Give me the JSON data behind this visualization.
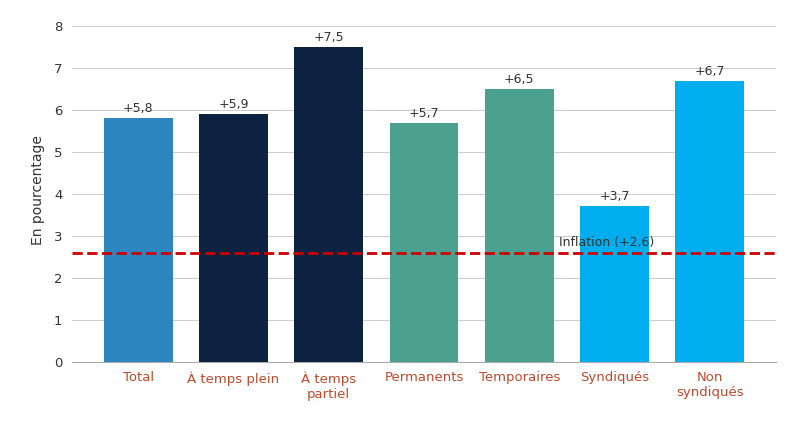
{
  "categories": [
    "Total",
    "À temps plein",
    "À temps\npartiel",
    "Permanents",
    "Temporaires",
    "Syndiqués",
    "Non\nsyndiqués"
  ],
  "values": [
    5.8,
    5.9,
    7.5,
    5.7,
    6.5,
    3.7,
    6.7
  ],
  "labels": [
    "+5,8",
    "+5,9",
    "+7,5",
    "+5,7",
    "+6,5",
    "+3,7",
    "+6,7"
  ],
  "bar_colors": [
    "#2E86C1",
    "#0D2240",
    "#0D2240",
    "#4CA090",
    "#4CA090",
    "#00AEEF",
    "#00AEEF"
  ],
  "ylabel": "En pourcentage",
  "ylim": [
    0,
    8.2
  ],
  "yticks": [
    0,
    1,
    2,
    3,
    4,
    5,
    6,
    7,
    8
  ],
  "inflation_value": 2.6,
  "inflation_label": "Inflation (+2,6)",
  "inflation_line_color": "#CC0000",
  "background_color": "#FFFFFF",
  "label_fontsize": 9,
  "ylabel_fontsize": 10,
  "tick_fontsize": 9.5,
  "xtick_color": "#C0492C",
  "bar_width": 0.72
}
